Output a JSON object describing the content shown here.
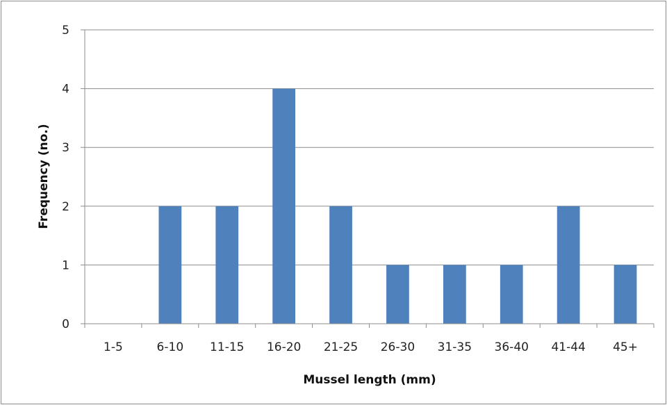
{
  "chart_data": {
    "type": "bar",
    "categories": [
      "1-5",
      "6-10",
      "11-15",
      "16-20",
      "21-25",
      "26-30",
      "31-35",
      "36-40",
      "41-44",
      "45+"
    ],
    "values": [
      0,
      2,
      2,
      4,
      2,
      1,
      1,
      1,
      2,
      1
    ],
    "xlabel": "Mussel length (mm)",
    "ylabel": "Frequency (no.)",
    "ylim": [
      0,
      5
    ],
    "yticks": [
      "0",
      "1",
      "2",
      "3",
      "4",
      "5"
    ],
    "grid": "horizontal major gridlines",
    "legend": "none",
    "bar_color": "#4f81bd",
    "gridline_color": "#8c8c8c"
  }
}
